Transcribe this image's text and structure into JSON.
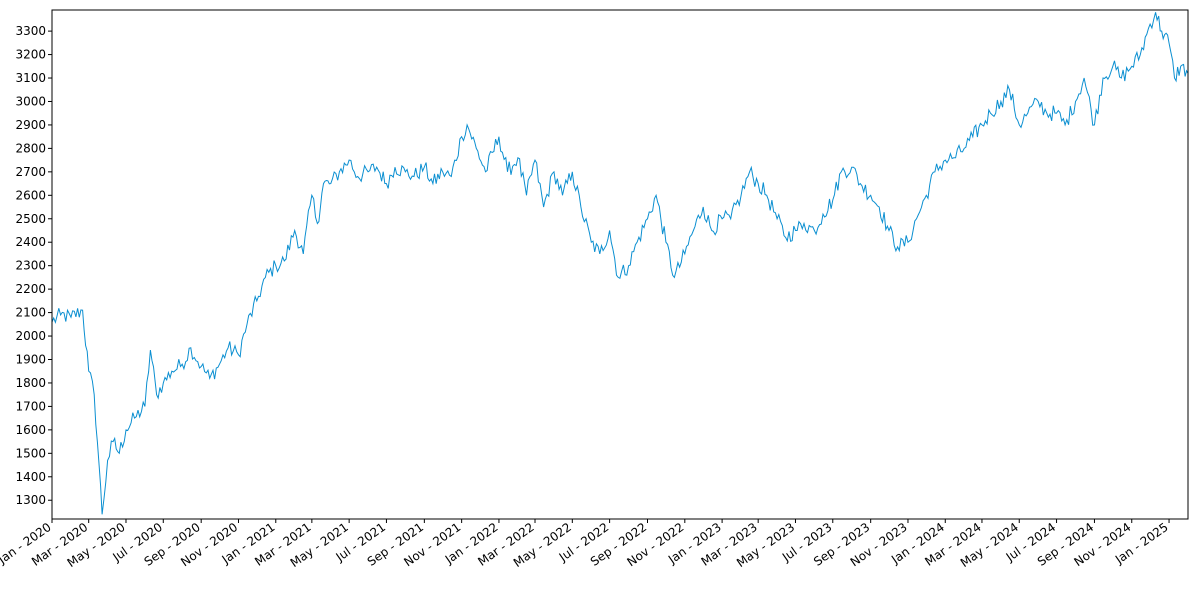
{
  "chart_data": {
    "type": "line",
    "title": "",
    "xlabel": "",
    "ylabel": "",
    "grid": false,
    "legend": "none",
    "x_range": [
      "2020-01-01",
      "2025-02-01"
    ],
    "ylim": [
      1220,
      3390
    ],
    "line_color": "#0b8fd1",
    "x_ticks": [
      {
        "date": "2020-01-01",
        "label": "Jan - 2020"
      },
      {
        "date": "2020-03-01",
        "label": "Mar - 2020"
      },
      {
        "date": "2020-05-01",
        "label": "May - 2020"
      },
      {
        "date": "2020-07-01",
        "label": "Jul - 2020"
      },
      {
        "date": "2020-09-01",
        "label": "Sep - 2020"
      },
      {
        "date": "2020-11-01",
        "label": "Nov - 2020"
      },
      {
        "date": "2021-01-01",
        "label": "Jan - 2021"
      },
      {
        "date": "2021-03-01",
        "label": "Mar - 2021"
      },
      {
        "date": "2021-05-01",
        "label": "May - 2021"
      },
      {
        "date": "2021-07-01",
        "label": "Jul - 2021"
      },
      {
        "date": "2021-09-01",
        "label": "Sep - 2021"
      },
      {
        "date": "2021-11-01",
        "label": "Nov - 2021"
      },
      {
        "date": "2022-01-01",
        "label": "Jan - 2022"
      },
      {
        "date": "2022-03-01",
        "label": "Mar - 2022"
      },
      {
        "date": "2022-05-01",
        "label": "May - 2022"
      },
      {
        "date": "2022-07-01",
        "label": "Jul - 2022"
      },
      {
        "date": "2022-09-01",
        "label": "Sep - 2022"
      },
      {
        "date": "2022-11-01",
        "label": "Nov - 2022"
      },
      {
        "date": "2023-01-01",
        "label": "Jan - 2023"
      },
      {
        "date": "2023-03-01",
        "label": "Mar - 2023"
      },
      {
        "date": "2023-05-01",
        "label": "May - 2023"
      },
      {
        "date": "2023-07-01",
        "label": "Jul - 2023"
      },
      {
        "date": "2023-09-01",
        "label": "Sep - 2023"
      },
      {
        "date": "2023-11-01",
        "label": "Nov - 2023"
      },
      {
        "date": "2024-01-01",
        "label": "Jan - 2024"
      },
      {
        "date": "2024-03-01",
        "label": "Mar - 2024"
      },
      {
        "date": "2024-05-01",
        "label": "May - 2024"
      },
      {
        "date": "2024-07-01",
        "label": "Jul - 2024"
      },
      {
        "date": "2024-09-01",
        "label": "Sep - 2024"
      },
      {
        "date": "2024-11-01",
        "label": "Nov - 2024"
      },
      {
        "date": "2025-01-01",
        "label": "Jan - 2025"
      }
    ],
    "y_ticks": [
      {
        "value": 1300,
        "label": "1300"
      },
      {
        "value": 1400,
        "label": "1400"
      },
      {
        "value": 1500,
        "label": "1500"
      },
      {
        "value": 1600,
        "label": "1600"
      },
      {
        "value": 1700,
        "label": "1700"
      },
      {
        "value": 1800,
        "label": "1800"
      },
      {
        "value": 1900,
        "label": "1900"
      },
      {
        "value": 2000,
        "label": "2000"
      },
      {
        "value": 2100,
        "label": "2100"
      },
      {
        "value": 2200,
        "label": "2200"
      },
      {
        "value": 2300,
        "label": "2300"
      },
      {
        "value": 2400,
        "label": "2400"
      },
      {
        "value": 2500,
        "label": "2500"
      },
      {
        "value": 2600,
        "label": "2600"
      },
      {
        "value": 2700,
        "label": "2700"
      },
      {
        "value": 2800,
        "label": "2800"
      },
      {
        "value": 2900,
        "label": "2900"
      },
      {
        "value": 3000,
        "label": "3000"
      },
      {
        "value": 3100,
        "label": "3100"
      },
      {
        "value": 3200,
        "label": "3200"
      },
      {
        "value": 3300,
        "label": "3300"
      }
    ],
    "series": [
      {
        "x": [
          "2020-01-01",
          "2020-01-15",
          "2020-02-01",
          "2020-02-20",
          "2020-03-01",
          "2020-03-10",
          "2020-03-18",
          "2020-03-23",
          "2020-04-01",
          "2020-04-10",
          "2020-04-20",
          "2020-05-01",
          "2020-05-15",
          "2020-06-01",
          "2020-06-10",
          "2020-06-20",
          "2020-07-01",
          "2020-07-15",
          "2020-08-01",
          "2020-08-15",
          "2020-09-01",
          "2020-09-15",
          "2020-10-01",
          "2020-10-15",
          "2020-11-01",
          "2020-11-15",
          "2020-12-01",
          "2020-12-15",
          "2021-01-01",
          "2021-01-15",
          "2021-02-01",
          "2021-02-15",
          "2021-03-01",
          "2021-03-10",
          "2021-03-20",
          "2021-04-01",
          "2021-04-15",
          "2021-05-01",
          "2021-05-15",
          "2021-06-01",
          "2021-06-15",
          "2021-07-01",
          "2021-07-15",
          "2021-08-01",
          "2021-08-15",
          "2021-09-01",
          "2021-09-15",
          "2021-10-01",
          "2021-10-15",
          "2021-11-01",
          "2021-11-10",
          "2021-11-25",
          "2021-12-10",
          "2022-01-01",
          "2022-01-15",
          "2022-02-01",
          "2022-02-15",
          "2022-03-01",
          "2022-03-15",
          "2022-04-01",
          "2022-04-15",
          "2022-05-01",
          "2022-05-15",
          "2022-06-01",
          "2022-06-15",
          "2022-07-01",
          "2022-07-15",
          "2022-08-01",
          "2022-08-15",
          "2022-09-01",
          "2022-09-15",
          "2022-10-01",
          "2022-10-15",
          "2022-11-01",
          "2022-11-15",
          "2022-12-01",
          "2022-12-15",
          "2023-01-01",
          "2023-01-15",
          "2023-02-01",
          "2023-02-15",
          "2023-03-01",
          "2023-03-15",
          "2023-04-01",
          "2023-04-15",
          "2023-05-01",
          "2023-05-15",
          "2023-06-01",
          "2023-06-15",
          "2023-07-01",
          "2023-07-15",
          "2023-08-01",
          "2023-08-15",
          "2023-09-01",
          "2023-09-15",
          "2023-10-01",
          "2023-10-15",
          "2023-11-01",
          "2023-11-15",
          "2023-12-01",
          "2023-12-15",
          "2024-01-01",
          "2024-01-15",
          "2024-02-01",
          "2024-02-15",
          "2024-03-01",
          "2024-03-15",
          "2024-04-01",
          "2024-04-15",
          "2024-05-01",
          "2024-05-15",
          "2024-06-01",
          "2024-06-15",
          "2024-07-01",
          "2024-07-15",
          "2024-08-01",
          "2024-08-15",
          "2024-09-01",
          "2024-09-15",
          "2024-10-01",
          "2024-10-15",
          "2024-11-01",
          "2024-11-15",
          "2024-12-01",
          "2024-12-10",
          "2024-12-20",
          "2025-01-01",
          "2025-01-10",
          "2025-01-20",
          "2025-02-01"
        ],
        "y": [
          2060,
          2090,
          2080,
          2110,
          1850,
          1750,
          1450,
          1240,
          1470,
          1550,
          1500,
          1600,
          1650,
          1700,
          1940,
          1750,
          1800,
          1850,
          1880,
          1950,
          1870,
          1820,
          1880,
          1950,
          1920,
          2050,
          2150,
          2250,
          2300,
          2320,
          2450,
          2350,
          2600,
          2480,
          2650,
          2650,
          2700,
          2750,
          2680,
          2700,
          2720,
          2650,
          2720,
          2700,
          2680,
          2720,
          2650,
          2700,
          2680,
          2850,
          2900,
          2800,
          2700,
          2850,
          2700,
          2760,
          2600,
          2750,
          2550,
          2700,
          2600,
          2700,
          2550,
          2400,
          2350,
          2450,
          2250,
          2300,
          2400,
          2500,
          2600,
          2400,
          2250,
          2350,
          2450,
          2550,
          2450,
          2500,
          2500,
          2600,
          2700,
          2650,
          2600,
          2500,
          2420,
          2450,
          2480,
          2450,
          2520,
          2580,
          2700,
          2720,
          2650,
          2600,
          2550,
          2450,
          2380,
          2400,
          2500,
          2600,
          2700,
          2750,
          2760,
          2800,
          2850,
          2900,
          2950,
          3000,
          3050,
          2900,
          2950,
          3000,
          2950,
          2950,
          2900,
          3000,
          3100,
          2900,
          3100,
          3150,
          3100,
          3150,
          3200,
          3330,
          3380,
          3300,
          3250,
          3100,
          3150,
          3120
        ]
      }
    ]
  }
}
